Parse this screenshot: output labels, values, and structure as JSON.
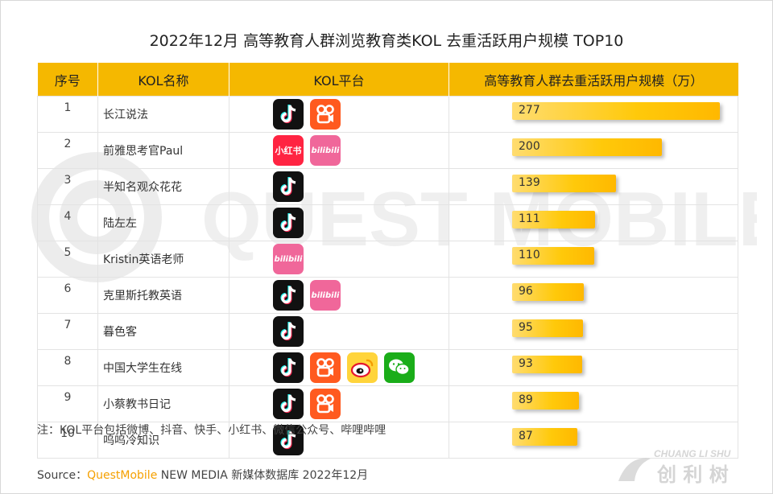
{
  "title": "2022年12月 高等教育人群浏览教育类KOL 去重活跃用户规模 TOP10",
  "table": {
    "headers": [
      "序号",
      "KOL名称",
      "KOL平台",
      "高等教育人群去重活跃用户规模（万）"
    ]
  },
  "chart_data": {
    "type": "bar",
    "title": "2022年12月 高等教育人群浏览教育类KOL 去重活跃用户规模 TOP10",
    "ylabel": "高等教育人群去重活跃用户规模（万）",
    "categories": [
      "长江说法",
      "前雅思考官Paul",
      "半知名观众花花",
      "陆左左",
      "Kristin英语老师",
      "克里斯托教英语",
      "暮色客",
      "中国大学生在线",
      "小蔡教书日记",
      "呜呜冷知识"
    ],
    "ranks": [
      "1",
      "2",
      "3",
      "4",
      "5",
      "6",
      "7",
      "8",
      "9",
      "10"
    ],
    "values": [
      277,
      200,
      139,
      111,
      110,
      96,
      95,
      93,
      89,
      87
    ],
    "platforms": [
      [
        "douyin-icon",
        "kuaishou-icon"
      ],
      [
        "xiaohongshu-icon",
        "bilibili-icon"
      ],
      [
        "douyin-icon"
      ],
      [
        "douyin-icon"
      ],
      [
        "bilibili-icon"
      ],
      [
        "douyin-icon",
        "bilibili-icon"
      ],
      [
        "douyin-icon"
      ],
      [
        "douyin-icon",
        "kuaishou-icon",
        "weibo-icon",
        "wechat-icon"
      ],
      [
        "douyin-icon",
        "kuaishou-icon"
      ],
      [
        "douyin-icon"
      ]
    ],
    "xlim": [
      0,
      277
    ]
  },
  "icon_text": {
    "xiaohongshu": "小红书",
    "bilibili": "bilibili"
  },
  "note": "注：KOL平台包括微博、抖音、快手、小红书、微信公众号、哔哩哔哩",
  "source": {
    "prefix": "Source：",
    "brand": "QuestMobile",
    "suffix": " NEW MEDIA 新媒体数据库 2022年12月"
  },
  "watermark": "QUEST MOBILE",
  "corner_logo": {
    "top": "CHUANG LI SHU",
    "bottom": "创 利 树"
  },
  "colors": {
    "header": "#f5b800",
    "bar": "#ffc90a",
    "brand": "#f5a000"
  }
}
